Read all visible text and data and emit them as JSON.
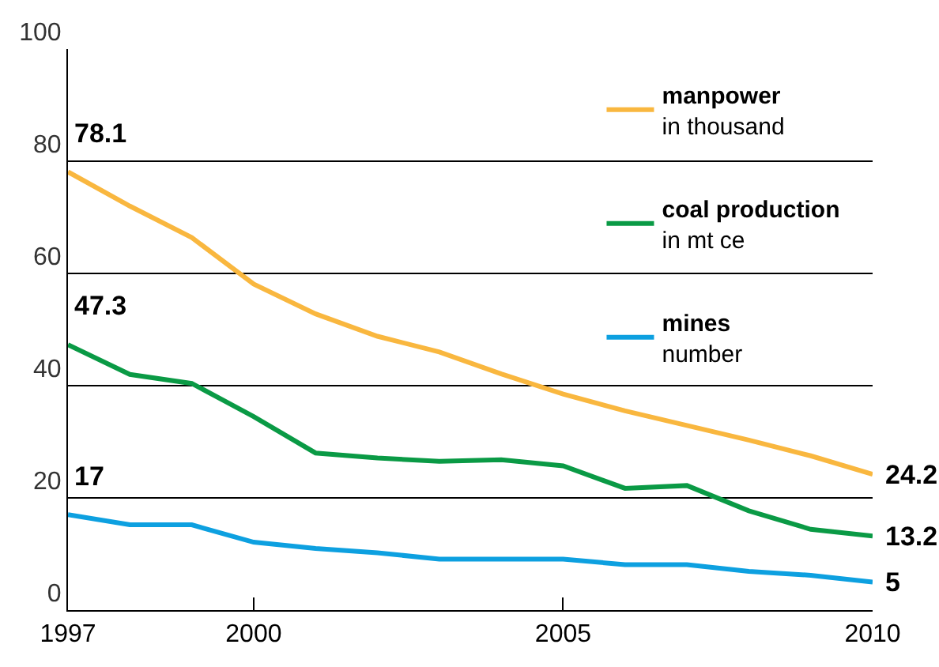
{
  "chart_data": {
    "type": "line",
    "x": [
      1997,
      1998,
      1999,
      2000,
      2001,
      2002,
      2003,
      2004,
      2005,
      2006,
      2007,
      2008,
      2009,
      2010
    ],
    "series": [
      {
        "name": "manpower\nin thousand",
        "color": "#f9b73f",
        "values": [
          78.1,
          72.0,
          66.4,
          58.1,
          52.8,
          48.8,
          46.0,
          42.1,
          38.5,
          35.5,
          32.9,
          30.3,
          27.5,
          24.2
        ],
        "value_labels": [
          "78.1",
          null,
          null,
          null,
          null,
          null,
          null,
          null,
          null,
          null,
          null,
          null,
          null,
          "24.2"
        ]
      },
      {
        "name": "coal production\nin mt ce",
        "color": "#0a9a45",
        "values": [
          47.3,
          42.0,
          40.4,
          34.5,
          28.0,
          27.1,
          26.5,
          26.8,
          25.7,
          21.7,
          22.2,
          17.7,
          14.4,
          13.2
        ],
        "value_labels": [
          "47.3",
          null,
          null,
          null,
          null,
          null,
          null,
          null,
          null,
          null,
          null,
          null,
          null,
          "13.2"
        ]
      },
      {
        "name": "mines\nnumber",
        "color": "#0da0e0",
        "values": [
          17,
          15.2,
          15.2,
          12.1,
          11.0,
          10.2,
          9.1,
          9.1,
          9.1,
          8.1,
          8.1,
          6.9,
          6.2,
          5
        ],
        "value_labels": [
          "17",
          null,
          null,
          null,
          null,
          null,
          null,
          null,
          null,
          null,
          null,
          null,
          null,
          "5"
        ]
      }
    ],
    "xlim": [
      1997,
      2010
    ],
    "xticks": [
      1997,
      2000,
      2005,
      2010
    ],
    "ylim": [
      0,
      100
    ],
    "yticks": [
      0,
      20,
      40,
      60,
      80,
      100
    ],
    "grid": "y",
    "legend": "top right",
    "marker": "none",
    "line_style": "solid"
  }
}
